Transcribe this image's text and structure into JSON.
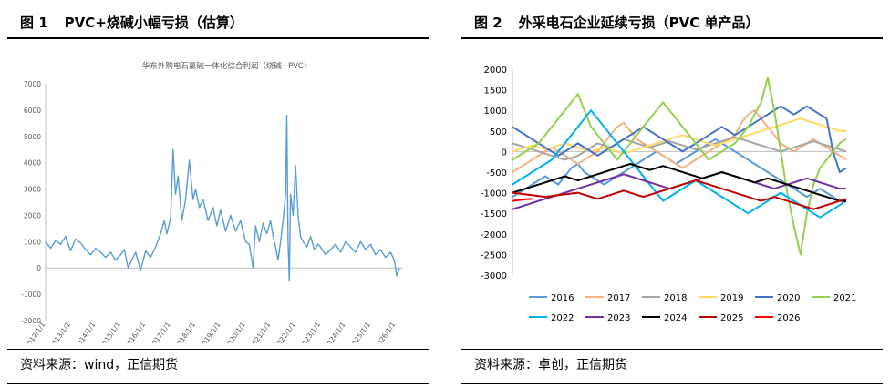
{
  "left": {
    "figure_number": "图 1",
    "figure_title": "PVC+烧碱小幅亏损（估算）",
    "source": "资料来源：wind，正信期货"
  },
  "right": {
    "figure_number": "图 2",
    "figure_title": "外采电石企业延续亏损（PVC 单产品）",
    "source": "资料来源：卓创，正信期货"
  },
  "chart_data": [
    {
      "type": "line",
      "title": "华东外购电石氯碱一体化综合利润（烧碱+PVC)",
      "xlabel": "",
      "ylabel": "",
      "ylim": [
        -2000,
        7000
      ],
      "yticks": [
        -2000,
        -1000,
        0,
        1000,
        2000,
        3000,
        4000,
        5000,
        6000,
        7000
      ],
      "xlim": [
        2012.0,
        2026.3
      ],
      "xticks": [
        "2012/1/1",
        "2013/1/1",
        "2014/1/1",
        "2015/1/1",
        "2016/1/1",
        "2017/1/1",
        "2018/1/1",
        "2019/1/1",
        "2020/1/1",
        "2021/1/1",
        "2022/1/1",
        "2023/1/1",
        "2024/1/1",
        "2025/1/1",
        "2026/1/1"
      ],
      "grid": false,
      "color": "#5b9bd5",
      "series": [
        {
          "x": [
            2012.0,
            2012.2,
            2012.4,
            2012.6,
            2012.8,
            2013.0,
            2013.2,
            2013.4,
            2013.6,
            2013.8,
            2014.0,
            2014.2,
            2014.4,
            2014.6,
            2014.8,
            2015.0,
            2015.15,
            2015.3,
            2015.45,
            2015.6,
            2015.8,
            2016.0,
            2016.2,
            2016.4,
            2016.6,
            2016.75,
            2016.85,
            2017.0,
            2017.1,
            2017.2,
            2017.3,
            2017.45,
            2017.6,
            2017.75,
            2017.9,
            2018.0,
            2018.15,
            2018.3,
            2018.5,
            2018.7,
            2018.85,
            2019.0,
            2019.2,
            2019.4,
            2019.6,
            2019.8,
            2020.0,
            2020.15,
            2020.3,
            2020.4,
            2020.55,
            2020.7,
            2020.85,
            2021.0,
            2021.1,
            2021.2,
            2021.3,
            2021.4,
            2021.5,
            2021.6,
            2021.65,
            2021.7,
            2021.75,
            2021.8,
            2021.9,
            2022.0,
            2022.1,
            2022.2,
            2022.3,
            2022.45,
            2022.6,
            2022.75,
            2022.9,
            2023.0,
            2023.2,
            2023.4,
            2023.6,
            2023.8,
            2024.0,
            2024.2,
            2024.4,
            2024.6,
            2024.8,
            2025.0,
            2025.2,
            2025.4,
            2025.6,
            2025.8,
            2025.95,
            2026.05,
            2026.15
          ],
          "y": [
            1000,
            750,
            1050,
            900,
            1200,
            650,
            1100,
            950,
            700,
            500,
            750,
            600,
            400,
            600,
            300,
            500,
            700,
            0,
            300,
            600,
            -100,
            650,
            400,
            800,
            1300,
            1800,
            1300,
            1900,
            4500,
            2800,
            3500,
            1800,
            2600,
            4100,
            2600,
            3000,
            2300,
            2600,
            1800,
            2300,
            1600,
            2200,
            1400,
            2000,
            1400,
            1800,
            1000,
            900,
            0,
            1600,
            1000,
            1700,
            1300,
            1800,
            1200,
            800,
            300,
            1000,
            1800,
            2800,
            5800,
            1000,
            -500,
            2800,
            2000,
            3900,
            2000,
            1200,
            1000,
            800,
            1200,
            700,
            900,
            800,
            500,
            700,
            900,
            600,
            1000,
            800,
            600,
            1000,
            700,
            900,
            500,
            700,
            400,
            600,
            300,
            -300,
            0
          ]
        }
      ]
    },
    {
      "type": "line",
      "title": "",
      "xlabel": "",
      "ylabel": "",
      "ylim": [
        -3000,
        2000
      ],
      "yticks": [
        -3000,
        -2500,
        -2000,
        -1500,
        -1000,
        -500,
        0,
        500,
        1000,
        1500,
        2000
      ],
      "x_points": 52,
      "grid": false,
      "legend_position": "bottom",
      "series": [
        {
          "name": "2016",
          "color": "#5b9bd5",
          "values": [
            -1100,
            -1000,
            -900,
            -800,
            -700,
            -600,
            -700,
            -800,
            -600,
            -400,
            -300,
            -500,
            -600,
            -700,
            -800,
            -700,
            -600,
            -500,
            -400,
            -300,
            -200,
            -100,
            0,
            -100,
            -200,
            -300,
            -200,
            -100,
            0,
            100,
            200,
            300,
            200,
            100,
            0,
            -100,
            -200,
            -300,
            -400,
            -500,
            -600,
            -700,
            -800,
            -900,
            -1000,
            -1100,
            -1000,
            -900,
            -1000,
            -1100,
            -1200,
            -1150
          ]
        },
        {
          "name": "2017",
          "color": "#f4b183",
          "values": [
            -500,
            -400,
            -300,
            -200,
            -100,
            0,
            100,
            0,
            -100,
            -200,
            -300,
            -200,
            -100,
            0,
            200,
            400,
            600,
            700,
            500,
            300,
            200,
            100,
            0,
            -100,
            -200,
            -300,
            -400,
            -300,
            -200,
            -100,
            0,
            100,
            200,
            300,
            400,
            700,
            900,
            1000,
            800,
            600,
            400,
            200,
            100,
            0,
            100,
            200,
            300,
            200,
            100,
            0,
            -100,
            -200
          ]
        },
        {
          "name": "2018",
          "color": "#a5a5a5",
          "values": [
            200,
            150,
            100,
            50,
            0,
            -50,
            -100,
            -150,
            -200,
            -150,
            -100,
            0,
            100,
            200,
            150,
            100,
            200,
            300,
            250,
            200,
            150,
            100,
            150,
            200,
            250,
            200,
            150,
            100,
            50,
            100,
            150,
            200,
            250,
            300,
            350,
            300,
            250,
            200,
            150,
            100,
            50,
            0,
            50,
            100,
            150,
            200,
            250,
            200,
            150,
            100,
            50,
            0
          ]
        },
        {
          "name": "2019",
          "color": "#ffd966",
          "values": [
            0,
            50,
            100,
            150,
            100,
            50,
            100,
            150,
            200,
            150,
            100,
            50,
            0,
            50,
            100,
            50,
            0,
            -50,
            0,
            50,
            100,
            150,
            200,
            250,
            300,
            350,
            400,
            350,
            300,
            250,
            200,
            150,
            200,
            250,
            300,
            350,
            400,
            450,
            500,
            550,
            600,
            650,
            700,
            750,
            800,
            750,
            700,
            650,
            600,
            550,
            500,
            500
          ]
        },
        {
          "name": "2020",
          "color": "#4472c4",
          "values": [
            600,
            500,
            400,
            300,
            200,
            100,
            0,
            -100,
            0,
            100,
            200,
            100,
            0,
            -100,
            0,
            100,
            200,
            300,
            400,
            500,
            600,
            500,
            400,
            300,
            200,
            100,
            0,
            100,
            200,
            300,
            400,
            500,
            600,
            500,
            400,
            500,
            600,
            700,
            800,
            900,
            1000,
            1100,
            1000,
            900,
            1000,
            1100,
            1000,
            900,
            800,
            0,
            -500,
            -400
          ]
        },
        {
          "name": "2021",
          "color": "#92d050",
          "values": [
            -200,
            -100,
            0,
            100,
            200,
            400,
            600,
            800,
            1000,
            1200,
            1400,
            1000,
            600,
            400,
            200,
            0,
            -200,
            0,
            200,
            400,
            600,
            800,
            1000,
            1200,
            1000,
            800,
            600,
            400,
            200,
            0,
            -200,
            -100,
            0,
            100,
            200,
            400,
            600,
            900,
            1200,
            1800,
            1000,
            0,
            -1000,
            -1800,
            -2500,
            -1500,
            -800,
            -400,
            -200,
            0,
            200,
            300
          ]
        },
        {
          "name": "2022",
          "color": "#00b0f0",
          "values": [
            -800,
            -700,
            -600,
            -500,
            -400,
            -300,
            -200,
            0,
            200,
            400,
            600,
            800,
            1000,
            800,
            600,
            400,
            200,
            0,
            -200,
            -400,
            -600,
            -800,
            -1000,
            -1200,
            -1100,
            -1000,
            -900,
            -800,
            -700,
            -800,
            -900,
            -1000,
            -1100,
            -1200,
            -1300,
            -1400,
            -1500,
            -1400,
            -1300,
            -1200,
            -1100,
            -1000,
            -1100,
            -1200,
            -1300,
            -1400,
            -1500,
            -1600,
            -1500,
            -1400,
            -1300,
            -1200
          ]
        },
        {
          "name": "2023",
          "color": "#7030a0",
          "values": [
            -1400,
            -1350,
            -1300,
            -1250,
            -1200,
            -1150,
            -1100,
            -1050,
            -1000,
            -950,
            -900,
            -850,
            -800,
            -750,
            -700,
            -650,
            -600,
            -550,
            -600,
            -650,
            -700,
            -750,
            -800,
            -850,
            -900,
            -850,
            -800,
            -750,
            -700,
            -650,
            -600,
            -550,
            -500,
            -550,
            -600,
            -650,
            -700,
            -750,
            -800,
            -850,
            -900,
            -850,
            -800,
            -750,
            -700,
            -650,
            -700,
            -750,
            -800,
            -850,
            -900,
            -900
          ]
        },
        {
          "name": "2024",
          "color": "#000000",
          "values": [
            -1000,
            -950,
            -900,
            -850,
            -800,
            -750,
            -700,
            -650,
            -600,
            -650,
            -700,
            -650,
            -600,
            -550,
            -500,
            -450,
            -400,
            -350,
            -300,
            -350,
            -400,
            -450,
            -400,
            -350,
            -400,
            -450,
            -500,
            -550,
            -600,
            -650,
            -600,
            -550,
            -500,
            -550,
            -600,
            -650,
            -700,
            -750,
            -700,
            -650,
            -700,
            -750,
            -800,
            -850,
            -900,
            -950,
            -1000,
            -1050,
            -1100,
            -1150,
            -1200,
            -1200
          ]
        },
        {
          "name": "2025",
          "color": "#c00000",
          "values": [
            -1000,
            -1020,
            -1040,
            -1060,
            -1080,
            -1100,
            -1080,
            -1060,
            -1040,
            -1020,
            -1000,
            -1050,
            -1100,
            -1150,
            -1100,
            -1050,
            -1000,
            -950,
            -1000,
            -1050,
            -1100,
            -1050,
            -1000,
            -950,
            -900,
            -850,
            -800,
            -750,
            -700,
            -750,
            -800,
            -850,
            -900,
            -950,
            -1000,
            -1050,
            -1100,
            -1150,
            -1200,
            -1150,
            -1100,
            -1150,
            -1200,
            -1250,
            -1300,
            -1350,
            -1400,
            -1350,
            -1300,
            -1250,
            -1200,
            -1150
          ]
        },
        {
          "name": "2026",
          "color": "#ff0000",
          "values": [
            -1200,
            -1180,
            -1160,
            -1150
          ]
        }
      ]
    }
  ]
}
